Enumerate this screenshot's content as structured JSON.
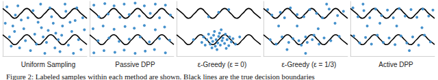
{
  "caption": "Figure 2: Labeled samples within each method are shown. Black lines are the true decision boundaries",
  "chart_data": [
    {
      "type": "scatter",
      "title": "Uniform Sampling",
      "color": "#3b8bc9",
      "marker": "circle",
      "xlim": [
        0,
        1
      ],
      "ylim": [
        0,
        1
      ],
      "tick_labels": false,
      "grid": false,
      "x": [
        0.05,
        0.12,
        0.2,
        0.3,
        0.38,
        0.45,
        0.52,
        0.6,
        0.68,
        0.75,
        0.82,
        0.9,
        0.95,
        0.08,
        0.15,
        0.25,
        0.33,
        0.42,
        0.48,
        0.56,
        0.63,
        0.71,
        0.78,
        0.86,
        0.93,
        0.03,
        0.18,
        0.27,
        0.36,
        0.5,
        0.58,
        0.66,
        0.74,
        0.84,
        0.97,
        0.1,
        0.22,
        0.4,
        0.62,
        0.8,
        0.88,
        0.46,
        0.7,
        0.14,
        0.54
      ],
      "values": [
        0.9,
        0.55,
        0.15,
        0.7,
        0.4,
        0.95,
        0.25,
        0.6,
        0.08,
        0.82,
        0.45,
        0.3,
        0.7,
        0.35,
        0.75,
        0.5,
        0.1,
        0.62,
        0.35,
        0.88,
        0.42,
        0.55,
        0.2,
        0.65,
        0.12,
        0.6,
        0.92,
        0.28,
        0.83,
        0.05,
        0.72,
        0.3,
        0.95,
        0.05,
        0.48,
        0.18,
        0.66,
        0.22,
        0.15,
        0.62,
        0.88,
        0.52,
        0.38,
        0.45,
        0.47
      ],
      "boundaries": [
        {
          "type": "line",
          "color": "#000000",
          "x": [
            0,
            0.071,
            0.143,
            0.214,
            0.286,
            0.357,
            0.429,
            0.5,
            0.571,
            0.643,
            0.714,
            0.786,
            0.857,
            0.929,
            1
          ],
          "values": [
            0.87,
            0.78,
            0.69,
            0.78,
            0.87,
            0.78,
            0.69,
            0.78,
            0.87,
            0.78,
            0.69,
            0.78,
            0.87,
            0.78,
            0.69
          ]
        },
        {
          "type": "line",
          "color": "#000000",
          "x": [
            0,
            0.071,
            0.143,
            0.214,
            0.286,
            0.357,
            0.429,
            0.5,
            0.571,
            0.643,
            0.714,
            0.786,
            0.857,
            0.929,
            1
          ],
          "values": [
            0.39,
            0.3,
            0.21,
            0.3,
            0.39,
            0.3,
            0.21,
            0.3,
            0.39,
            0.3,
            0.21,
            0.3,
            0.39,
            0.3,
            0.21
          ]
        }
      ]
    },
    {
      "type": "scatter",
      "title": "Passive DPP",
      "color": "#3b8bc9",
      "marker": "circle",
      "xlim": [
        0,
        1
      ],
      "ylim": [
        0,
        1
      ],
      "tick_labels": false,
      "grid": false,
      "x": [
        0.05,
        0.17,
        0.3,
        0.41,
        0.54,
        0.66,
        0.77,
        0.9,
        0.1,
        0.23,
        0.35,
        0.47,
        0.6,
        0.71,
        0.83,
        0.95,
        0.04,
        0.16,
        0.29,
        0.42,
        0.53,
        0.65,
        0.78,
        0.89,
        0.11,
        0.22,
        0.36,
        0.47,
        0.59,
        0.72,
        0.83,
        0.96,
        0.05,
        0.18,
        0.29,
        0.41,
        0.54,
        0.65,
        0.78,
        0.9
      ],
      "values": [
        0.06,
        0.1,
        0.07,
        0.11,
        0.05,
        0.09,
        0.12,
        0.06,
        0.28,
        0.33,
        0.27,
        0.31,
        0.35,
        0.26,
        0.32,
        0.29,
        0.5,
        0.55,
        0.49,
        0.54,
        0.51,
        0.56,
        0.48,
        0.53,
        0.72,
        0.77,
        0.71,
        0.76,
        0.73,
        0.78,
        0.7,
        0.75,
        0.93,
        0.96,
        0.92,
        0.95,
        0.97,
        0.92,
        0.95,
        0.93
      ],
      "boundaries": [
        {
          "type": "line",
          "color": "#000000",
          "x": [
            0,
            0.071,
            0.143,
            0.214,
            0.286,
            0.357,
            0.429,
            0.5,
            0.571,
            0.643,
            0.714,
            0.786,
            0.857,
            0.929,
            1
          ],
          "values": [
            0.87,
            0.78,
            0.69,
            0.78,
            0.87,
            0.78,
            0.69,
            0.78,
            0.87,
            0.78,
            0.69,
            0.78,
            0.87,
            0.78,
            0.69
          ]
        },
        {
          "type": "line",
          "color": "#000000",
          "x": [
            0,
            0.071,
            0.143,
            0.214,
            0.286,
            0.357,
            0.429,
            0.5,
            0.571,
            0.643,
            0.714,
            0.786,
            0.857,
            0.929,
            1
          ],
          "values": [
            0.39,
            0.3,
            0.21,
            0.3,
            0.39,
            0.3,
            0.21,
            0.3,
            0.39,
            0.3,
            0.21,
            0.3,
            0.39,
            0.3,
            0.21
          ]
        }
      ]
    },
    {
      "type": "scatter",
      "title": "ε-Greedy (ε = 0)",
      "color": "#3b8bc9",
      "marker": "circle",
      "xlim": [
        0,
        1
      ],
      "ylim": [
        0,
        1
      ],
      "tick_labels": false,
      "grid": false,
      "x": [
        0.3,
        0.32,
        0.34,
        0.36,
        0.38,
        0.4,
        0.41,
        0.43,
        0.44,
        0.46,
        0.47,
        0.49,
        0.5,
        0.51,
        0.52,
        0.54,
        0.55,
        0.57,
        0.58,
        0.6,
        0.62,
        0.63,
        0.65,
        0.67,
        0.7,
        0.45,
        0.53,
        0.48,
        0.59,
        0.42,
        0.2,
        0.75,
        0.5,
        0.38,
        0.62
      ],
      "values": [
        0.25,
        0.35,
        0.2,
        0.3,
        0.4,
        0.22,
        0.33,
        0.27,
        0.38,
        0.18,
        0.3,
        0.24,
        0.36,
        0.42,
        0.2,
        0.28,
        0.33,
        0.23,
        0.4,
        0.3,
        0.19,
        0.35,
        0.26,
        0.32,
        0.22,
        0.45,
        0.48,
        0.12,
        0.14,
        0.15,
        0.3,
        0.35,
        0.8,
        0.72,
        0.85
      ],
      "boundaries": [
        {
          "type": "line",
          "color": "#000000",
          "x": [
            0,
            0.071,
            0.143,
            0.214,
            0.286,
            0.357,
            0.429,
            0.5,
            0.571,
            0.643,
            0.714,
            0.786,
            0.857,
            0.929,
            1
          ],
          "values": [
            0.87,
            0.78,
            0.69,
            0.78,
            0.87,
            0.78,
            0.69,
            0.78,
            0.87,
            0.78,
            0.69,
            0.78,
            0.87,
            0.78,
            0.69
          ]
        },
        {
          "type": "line",
          "color": "#000000",
          "x": [
            0,
            0.071,
            0.143,
            0.214,
            0.286,
            0.357,
            0.429,
            0.5,
            0.571,
            0.643,
            0.714,
            0.786,
            0.857,
            0.929,
            1
          ],
          "values": [
            0.39,
            0.3,
            0.21,
            0.3,
            0.39,
            0.3,
            0.21,
            0.3,
            0.39,
            0.3,
            0.21,
            0.3,
            0.39,
            0.3,
            0.21
          ]
        }
      ]
    },
    {
      "type": "scatter",
      "title": "ε-Greedy (ε = 1/3)",
      "color": "#3b8bc9",
      "marker": "circle",
      "xlim": [
        0,
        1
      ],
      "ylim": [
        0,
        1
      ],
      "tick_labels": false,
      "grid": false,
      "x": [
        0.05,
        0.1,
        0.2,
        0.25,
        0.32,
        0.4,
        0.48,
        0.55,
        0.63,
        0.7,
        0.78,
        0.88,
        0.95,
        0.08,
        0.15,
        0.22,
        0.3,
        0.35,
        0.42,
        0.45,
        0.5,
        0.52,
        0.58,
        0.6,
        0.66,
        0.72,
        0.8,
        0.9,
        0.18,
        0.4,
        0.65,
        0.85,
        0.5,
        0.28,
        0.75
      ],
      "values": [
        0.85,
        0.75,
        0.8,
        0.7,
        0.88,
        0.76,
        0.72,
        0.85,
        0.78,
        0.7,
        0.86,
        0.74,
        0.82,
        0.3,
        0.22,
        0.35,
        0.25,
        0.32,
        0.28,
        0.2,
        0.35,
        0.25,
        0.3,
        0.38,
        0.22,
        0.33,
        0.28,
        0.36,
        0.55,
        0.55,
        0.5,
        0.6,
        0.05,
        0.12,
        0.95
      ],
      "boundaries": [
        {
          "type": "line",
          "color": "#000000",
          "x": [
            0,
            0.071,
            0.143,
            0.214,
            0.286,
            0.357,
            0.429,
            0.5,
            0.571,
            0.643,
            0.714,
            0.786,
            0.857,
            0.929,
            1
          ],
          "values": [
            0.87,
            0.78,
            0.69,
            0.78,
            0.87,
            0.78,
            0.69,
            0.78,
            0.87,
            0.78,
            0.69,
            0.78,
            0.87,
            0.78,
            0.69
          ]
        },
        {
          "type": "line",
          "color": "#000000",
          "x": [
            0,
            0.071,
            0.143,
            0.214,
            0.286,
            0.357,
            0.429,
            0.5,
            0.571,
            0.643,
            0.714,
            0.786,
            0.857,
            0.929,
            1
          ],
          "values": [
            0.39,
            0.3,
            0.21,
            0.3,
            0.39,
            0.3,
            0.21,
            0.3,
            0.39,
            0.3,
            0.21,
            0.3,
            0.39,
            0.3,
            0.21
          ]
        }
      ]
    },
    {
      "type": "scatter",
      "title": "Active DPP",
      "color": "#3b8bc9",
      "marker": "circle",
      "xlim": [
        0,
        1
      ],
      "ylim": [
        0,
        1
      ],
      "tick_labels": false,
      "grid": false,
      "x": [
        0.03,
        0.09,
        0.16,
        0.23,
        0.3,
        0.37,
        0.44,
        0.51,
        0.58,
        0.65,
        0.72,
        0.79,
        0.86,
        0.93,
        0.98,
        0.04,
        0.11,
        0.18,
        0.25,
        0.32,
        0.39,
        0.46,
        0.53,
        0.6,
        0.67,
        0.74,
        0.81,
        0.88,
        0.95,
        0.2,
        0.55,
        0.85,
        0.35,
        0.7,
        0.15
      ],
      "values": [
        0.88,
        0.72,
        0.83,
        0.7,
        0.86,
        0.74,
        0.84,
        0.7,
        0.87,
        0.73,
        0.85,
        0.71,
        0.86,
        0.73,
        0.84,
        0.37,
        0.24,
        0.34,
        0.22,
        0.38,
        0.25,
        0.33,
        0.21,
        0.37,
        0.24,
        0.35,
        0.2,
        0.38,
        0.26,
        0.55,
        0.55,
        0.52,
        0.6,
        0.1,
        0.95
      ],
      "boundaries": [
        {
          "type": "line",
          "color": "#000000",
          "x": [
            0,
            0.071,
            0.143,
            0.214,
            0.286,
            0.357,
            0.429,
            0.5,
            0.571,
            0.643,
            0.714,
            0.786,
            0.857,
            0.929,
            1
          ],
          "values": [
            0.87,
            0.78,
            0.69,
            0.78,
            0.87,
            0.78,
            0.69,
            0.78,
            0.87,
            0.78,
            0.69,
            0.78,
            0.87,
            0.78,
            0.69
          ]
        },
        {
          "type": "line",
          "color": "#000000",
          "x": [
            0,
            0.071,
            0.143,
            0.214,
            0.286,
            0.357,
            0.429,
            0.5,
            0.571,
            0.643,
            0.714,
            0.786,
            0.857,
            0.929,
            1
          ],
          "values": [
            0.39,
            0.3,
            0.21,
            0.3,
            0.39,
            0.3,
            0.21,
            0.3,
            0.39,
            0.3,
            0.21,
            0.3,
            0.39,
            0.3,
            0.21
          ]
        }
      ]
    }
  ]
}
